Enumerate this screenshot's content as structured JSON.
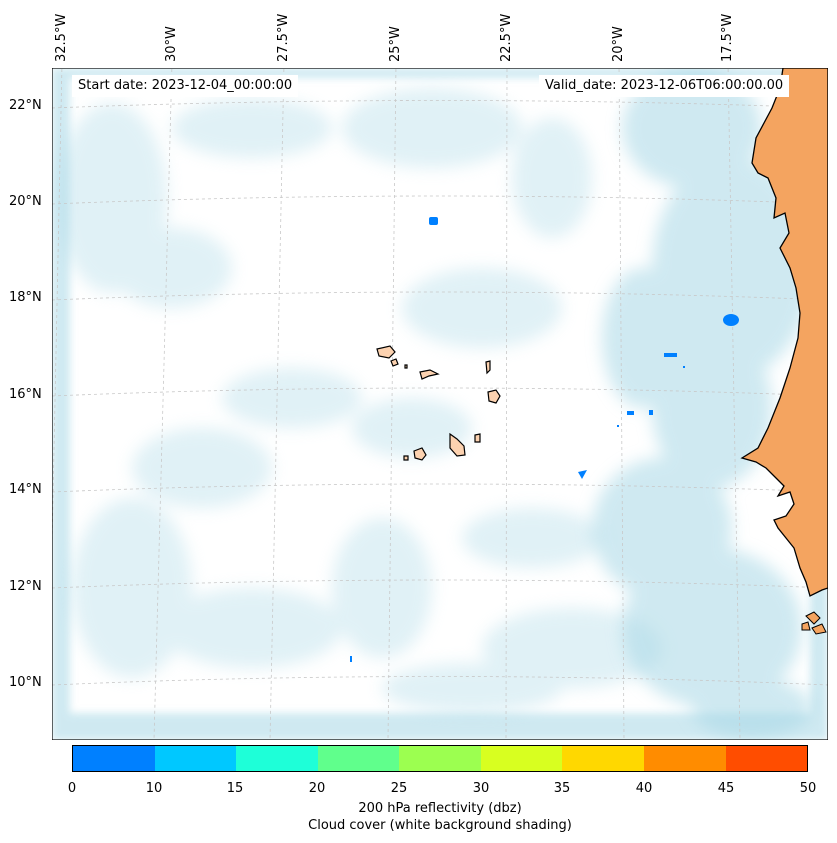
{
  "map": {
    "start_date_label": "Start date: 2023-12-04_00:00:00",
    "valid_date_label": "Valid_date: 2023-12-06T06:00:00.00",
    "lon_labels": [
      "32.5°W",
      "30°W",
      "27.5°W",
      "25°W",
      "22.5°W",
      "20°W",
      "17.5°W"
    ],
    "lat_labels": [
      "22°N",
      "20°N",
      "18°N",
      "16°N",
      "14°N",
      "12°N",
      "10°N"
    ],
    "land_color": "#f4a460",
    "island_color": "#fcd2b0",
    "cloud_color": "#a8d8e6",
    "reflectivity_patch_color": "#0080ff"
  },
  "colorbar": {
    "ticks": [
      "0",
      "10",
      "15",
      "20",
      "25",
      "30",
      "35",
      "40",
      "45",
      "50"
    ],
    "colors": [
      "#0080ff",
      "#00c8ff",
      "#1effd8",
      "#60ff8c",
      "#9cff50",
      "#d8ff20",
      "#ffd800",
      "#ff8c00",
      "#ff4d00"
    ],
    "label_line1": "200 hPa reflectivity (dbz)",
    "label_line2": "Cloud cover (white background shading)"
  }
}
